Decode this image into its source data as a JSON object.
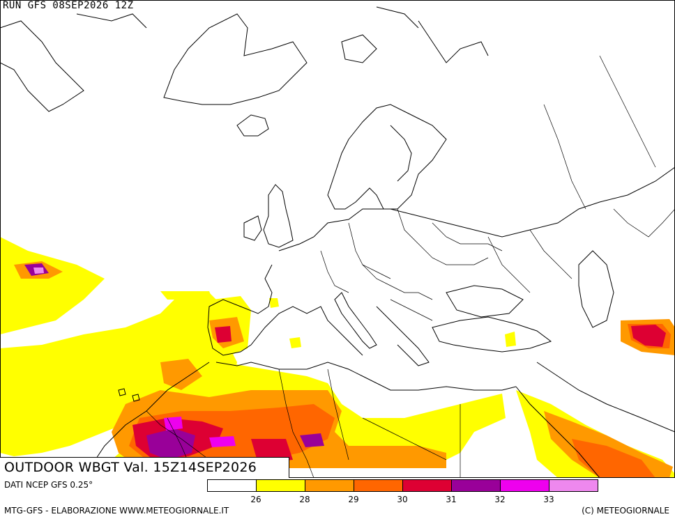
{
  "header": {
    "run_title": "RUN GFS 08SEP2026 12Z"
  },
  "map": {
    "valid_label": "OUTDOOR WBGT Val. 15Z14SEP2026",
    "field": "outdoor-wbgt",
    "colors": {
      "background": "#ffffff",
      "borders": "#000000"
    }
  },
  "footer": {
    "data_source": "DATI NCEP GFS 0.25°",
    "credit": "MTG-GFS - ELABORAZIONE WWW.METEOGIORNALE.IT",
    "copyright": "(C) METEOGIORNALE"
  },
  "legend": {
    "colors": [
      "#ffffff",
      "#ffff00",
      "#ff9900",
      "#ff6600",
      "#dd0033",
      "#990099",
      "#ee00ee",
      "#ee88ee"
    ],
    "ticks": [
      "26",
      "28",
      "29",
      "30",
      "31",
      "32",
      "33"
    ]
  }
}
